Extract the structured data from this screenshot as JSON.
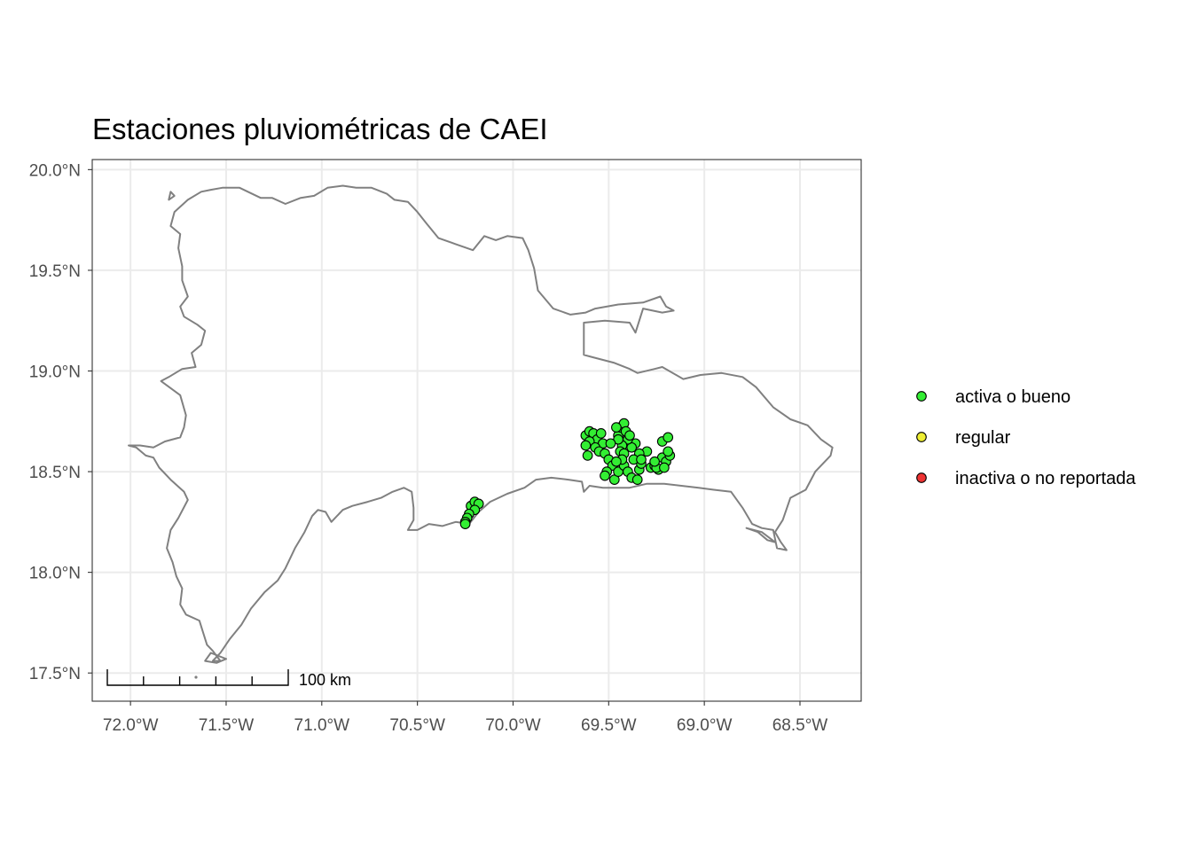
{
  "title": "Estaciones pluviométricas de CAEI",
  "colors": {
    "activa": "#33ee33",
    "regular": "#eeee33",
    "inactiva": "#ee3333",
    "outline": "#808080",
    "grid": "#ebebeb",
    "panel_border": "#333333",
    "tick_label": "#4d4d4d"
  },
  "chart_data": {
    "type": "scatter",
    "map": "Dominican Republic outline with station points",
    "xlim": [
      -72.2,
      -68.18
    ],
    "ylim": [
      17.36,
      20.05
    ],
    "x_ticks": [
      {
        "value": -72.0,
        "label": "72.0°W"
      },
      {
        "value": -71.5,
        "label": "71.5°W"
      },
      {
        "value": -71.0,
        "label": "71.0°W"
      },
      {
        "value": -70.5,
        "label": "70.5°W"
      },
      {
        "value": -70.0,
        "label": "70.0°W"
      },
      {
        "value": -69.5,
        "label": "69.5°W"
      },
      {
        "value": -69.0,
        "label": "69.0°W"
      },
      {
        "value": -68.5,
        "label": "68.5°W"
      }
    ],
    "y_ticks": [
      {
        "value": 17.5,
        "label": "17.5°N"
      },
      {
        "value": 18.0,
        "label": "18.0°N"
      },
      {
        "value": 18.5,
        "label": "18.5°N"
      },
      {
        "value": 19.0,
        "label": "19.0°N"
      },
      {
        "value": 19.5,
        "label": "19.5°N"
      },
      {
        "value": 20.0,
        "label": "20.0°N"
      }
    ],
    "grid": true,
    "legend": {
      "placement": "right",
      "items": [
        {
          "key": "activa",
          "label": "activa o bueno"
        },
        {
          "key": "regular",
          "label": "regular"
        },
        {
          "key": "inactiva",
          "label": "inactiva o no reportada"
        }
      ]
    },
    "scale_bar": {
      "label": "100 km"
    },
    "outline": [
      [
        -72.01,
        18.63
      ],
      [
        -71.97,
        18.62
      ],
      [
        -71.92,
        18.58
      ],
      [
        -71.88,
        18.57
      ],
      [
        -71.85,
        18.52
      ],
      [
        -71.79,
        18.46
      ],
      [
        -71.72,
        18.4
      ],
      [
        -71.7,
        18.36
      ],
      [
        -71.75,
        18.27
      ],
      [
        -71.79,
        18.21
      ],
      [
        -71.81,
        18.12
      ],
      [
        -71.78,
        18.05
      ],
      [
        -71.76,
        17.98
      ],
      [
        -71.73,
        17.92
      ],
      [
        -71.74,
        17.84
      ],
      [
        -71.71,
        17.79
      ],
      [
        -71.64,
        17.76
      ],
      [
        -71.62,
        17.7
      ],
      [
        -71.6,
        17.64
      ],
      [
        -71.57,
        17.61
      ],
      [
        -71.53,
        17.56
      ],
      [
        -71.57,
        17.56
      ],
      [
        -71.53,
        17.6
      ],
      [
        -71.48,
        17.67
      ],
      [
        -71.42,
        17.74
      ],
      [
        -71.37,
        17.82
      ],
      [
        -71.3,
        17.9
      ],
      [
        -71.23,
        17.96
      ],
      [
        -71.19,
        18.02
      ],
      [
        -71.14,
        18.12
      ],
      [
        -71.09,
        18.2
      ],
      [
        -71.05,
        18.28
      ],
      [
        -71.02,
        18.31
      ],
      [
        -70.98,
        18.3
      ],
      [
        -70.95,
        18.25
      ],
      [
        -70.89,
        18.31
      ],
      [
        -70.84,
        18.33
      ],
      [
        -70.76,
        18.35
      ],
      [
        -70.69,
        18.37
      ],
      [
        -70.63,
        18.4
      ],
      [
        -70.57,
        18.42
      ],
      [
        -70.53,
        18.4
      ],
      [
        -70.52,
        18.32
      ],
      [
        -70.52,
        18.26
      ],
      [
        -70.55,
        18.21
      ],
      [
        -70.5,
        18.21
      ],
      [
        -70.44,
        18.24
      ],
      [
        -70.37,
        18.23
      ],
      [
        -70.3,
        18.25
      ],
      [
        -70.23,
        18.24
      ],
      [
        -70.18,
        18.3
      ],
      [
        -70.12,
        18.35
      ],
      [
        -70.03,
        18.39
      ],
      [
        -69.94,
        18.42
      ],
      [
        -69.88,
        18.46
      ],
      [
        -69.8,
        18.47
      ],
      [
        -69.71,
        18.46
      ],
      [
        -69.64,
        18.45
      ],
      [
        -69.63,
        18.4
      ],
      [
        -69.6,
        18.43
      ],
      [
        -69.53,
        18.42
      ],
      [
        -69.47,
        18.42
      ],
      [
        -69.39,
        18.42
      ],
      [
        -69.3,
        18.44
      ],
      [
        -69.21,
        18.44
      ],
      [
        -69.12,
        18.43
      ],
      [
        -69.03,
        18.42
      ],
      [
        -68.95,
        18.41
      ],
      [
        -68.86,
        18.4
      ],
      [
        -68.8,
        18.32
      ],
      [
        -68.75,
        18.24
      ],
      [
        -68.7,
        18.22
      ],
      [
        -68.64,
        18.21
      ],
      [
        -68.62,
        18.12
      ],
      [
        -68.57,
        18.11
      ],
      [
        -68.6,
        18.15
      ],
      [
        -68.63,
        18.2
      ],
      [
        -68.59,
        18.26
      ],
      [
        -68.55,
        18.37
      ],
      [
        -68.47,
        18.41
      ],
      [
        -68.42,
        18.5
      ],
      [
        -68.34,
        18.58
      ],
      [
        -68.33,
        18.62
      ],
      [
        -68.39,
        18.66
      ],
      [
        -68.46,
        18.73
      ],
      [
        -68.55,
        18.76
      ],
      [
        -68.64,
        18.82
      ],
      [
        -68.73,
        18.92
      ],
      [
        -68.8,
        18.97
      ],
      [
        -68.91,
        18.99
      ],
      [
        -69.02,
        18.98
      ],
      [
        -69.11,
        18.96
      ],
      [
        -69.22,
        19.02
      ],
      [
        -69.26,
        19.01
      ],
      [
        -69.35,
        18.99
      ],
      [
        -69.39,
        19.01
      ],
      [
        -69.47,
        19.04
      ],
      [
        -69.59,
        19.07
      ],
      [
        -69.63,
        19.08
      ],
      [
        -69.63,
        19.24
      ],
      [
        -69.52,
        19.25
      ],
      [
        -69.39,
        19.24
      ],
      [
        -69.36,
        19.19
      ],
      [
        -69.32,
        19.31
      ],
      [
        -69.22,
        19.29
      ],
      [
        -69.16,
        19.3
      ],
      [
        -69.2,
        19.32
      ],
      [
        -69.23,
        19.37
      ],
      [
        -69.32,
        19.34
      ],
      [
        -69.45,
        19.33
      ],
      [
        -69.57,
        19.31
      ],
      [
        -69.62,
        19.29
      ],
      [
        -69.7,
        19.28
      ],
      [
        -69.79,
        19.31
      ],
      [
        -69.87,
        19.4
      ],
      [
        -69.89,
        19.51
      ],
      [
        -69.92,
        19.6
      ],
      [
        -69.95,
        19.66
      ],
      [
        -70.03,
        19.67
      ],
      [
        -70.09,
        19.65
      ],
      [
        -70.15,
        19.67
      ],
      [
        -70.21,
        19.6
      ],
      [
        -70.3,
        19.63
      ],
      [
        -70.39,
        19.66
      ],
      [
        -70.45,
        19.73
      ],
      [
        -70.5,
        19.79
      ],
      [
        -70.55,
        19.84
      ],
      [
        -70.62,
        19.85
      ],
      [
        -70.66,
        19.88
      ],
      [
        -70.74,
        19.91
      ],
      [
        -70.82,
        19.91
      ],
      [
        -70.89,
        19.92
      ],
      [
        -70.97,
        19.91
      ],
      [
        -71.04,
        19.87
      ],
      [
        -71.11,
        19.86
      ],
      [
        -71.19,
        19.83
      ],
      [
        -71.26,
        19.86
      ],
      [
        -71.32,
        19.86
      ],
      [
        -71.43,
        19.91
      ],
      [
        -71.52,
        19.91
      ],
      [
        -71.58,
        19.9
      ],
      [
        -71.63,
        19.89
      ],
      [
        -71.7,
        19.85
      ],
      [
        -71.77,
        19.79
      ],
      [
        -71.79,
        19.72
      ],
      [
        -71.74,
        19.68
      ],
      [
        -71.75,
        19.61
      ],
      [
        -71.73,
        19.52
      ],
      [
        -71.73,
        19.45
      ],
      [
        -71.7,
        19.37
      ],
      [
        -71.74,
        19.32
      ],
      [
        -71.72,
        19.27
      ],
      [
        -71.65,
        19.23
      ],
      [
        -71.61,
        19.2
      ],
      [
        -71.63,
        19.13
      ],
      [
        -71.68,
        19.09
      ],
      [
        -71.66,
        19.02
      ],
      [
        -71.73,
        19.01
      ],
      [
        -71.8,
        18.97
      ],
      [
        -71.84,
        18.95
      ],
      [
        -71.74,
        18.88
      ],
      [
        -71.71,
        18.78
      ],
      [
        -71.72,
        18.72
      ],
      [
        -71.74,
        18.67
      ],
      [
        -71.82,
        18.65
      ],
      [
        -71.88,
        18.62
      ],
      [
        -71.95,
        18.63
      ],
      [
        -72.01,
        18.63
      ]
    ],
    "islands": [
      [
        [
          -68.78,
          18.22
        ],
        [
          -68.7,
          18.2
        ],
        [
          -68.63,
          18.15
        ],
        [
          -68.67,
          18.16
        ],
        [
          -68.72,
          18.2
        ],
        [
          -68.78,
          18.22
        ]
      ],
      [
        [
          -71.55,
          17.55
        ],
        [
          -71.5,
          17.57
        ],
        [
          -71.58,
          17.6
        ],
        [
          -71.61,
          17.56
        ],
        [
          -71.55,
          17.55
        ]
      ],
      [
        [
          -71.8,
          19.85
        ],
        [
          -71.77,
          19.87
        ],
        [
          -71.79,
          19.89
        ],
        [
          -71.8,
          19.85
        ]
      ]
    ],
    "points_activa": [
      [
        -69.62,
        18.68
      ],
      [
        -69.6,
        18.7
      ],
      [
        -69.58,
        18.69
      ],
      [
        -69.56,
        18.66
      ],
      [
        -69.54,
        18.69
      ],
      [
        -69.53,
        18.64
      ],
      [
        -69.6,
        18.65
      ],
      [
        -69.62,
        18.63
      ],
      [
        -69.61,
        18.58
      ],
      [
        -69.57,
        18.62
      ],
      [
        -69.55,
        18.6
      ],
      [
        -69.52,
        18.59
      ],
      [
        -69.5,
        18.56
      ],
      [
        -69.48,
        18.53
      ],
      [
        -69.51,
        18.5
      ],
      [
        -69.52,
        18.48
      ],
      [
        -69.47,
        18.46
      ],
      [
        -69.45,
        18.5
      ],
      [
        -69.42,
        18.53
      ],
      [
        -69.4,
        18.5
      ],
      [
        -69.38,
        18.47
      ],
      [
        -69.35,
        18.46
      ],
      [
        -69.34,
        18.51
      ],
      [
        -69.33,
        18.54
      ],
      [
        -69.3,
        18.6
      ],
      [
        -69.34,
        18.59
      ],
      [
        -69.36,
        18.64
      ],
      [
        -69.38,
        18.62
      ],
      [
        -69.4,
        18.66
      ],
      [
        -69.43,
        18.63
      ],
      [
        -69.44,
        18.6
      ],
      [
        -69.42,
        18.59
      ],
      [
        -69.45,
        18.68
      ],
      [
        -69.44,
        18.72
      ],
      [
        -69.42,
        18.74
      ],
      [
        -69.46,
        18.72
      ],
      [
        -69.41,
        18.7
      ],
      [
        -69.39,
        18.68
      ],
      [
        -69.45,
        18.66
      ],
      [
        -69.43,
        18.56
      ],
      [
        -69.46,
        18.55
      ],
      [
        -69.28,
        18.52
      ],
      [
        -69.26,
        18.53
      ],
      [
        -69.24,
        18.51
      ],
      [
        -69.22,
        18.57
      ],
      [
        -69.2,
        18.55
      ],
      [
        -69.18,
        18.58
      ],
      [
        -69.19,
        18.6
      ],
      [
        -69.22,
        18.65
      ],
      [
        -69.19,
        18.67
      ],
      [
        -69.25,
        18.52
      ],
      [
        -69.21,
        18.52
      ],
      [
        -69.49,
        18.64
      ],
      [
        -69.37,
        18.56
      ],
      [
        -69.33,
        18.56
      ],
      [
        -69.26,
        18.55
      ],
      [
        -70.22,
        18.33
      ],
      [
        -70.2,
        18.35
      ],
      [
        -70.18,
        18.34
      ],
      [
        -70.2,
        18.31
      ],
      [
        -70.23,
        18.29
      ],
      [
        -70.24,
        18.27
      ],
      [
        -70.25,
        18.25
      ],
      [
        -70.25,
        18.24
      ]
    ],
    "points_regular": [],
    "points_inactiva": []
  }
}
